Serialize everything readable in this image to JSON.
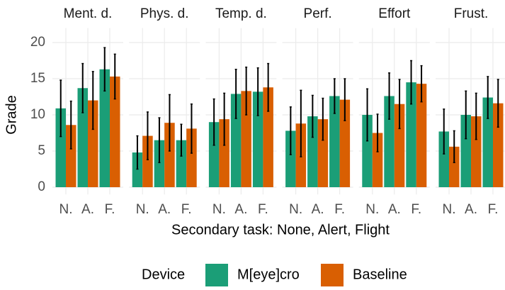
{
  "y_label": "Grade",
  "x_label": "Secondary task: None, Alert, Flight",
  "legend_title": "Device",
  "chart_data": [
    {
      "type": "bar",
      "title": "Ment. d.",
      "categories": [
        "N.",
        "A.",
        "F."
      ],
      "ylim": [
        -1,
        22
      ],
      "yticks": [
        0,
        5,
        10,
        15,
        20
      ],
      "grid": true,
      "series": [
        {
          "name": "M[eye]cro",
          "color": "#1b9e77",
          "values": [
            10.9,
            13.7,
            16.3
          ],
          "errors": [
            3.9,
            3.4,
            3.0
          ]
        },
        {
          "name": "Baseline",
          "color": "#d95f02",
          "values": [
            8.6,
            12.0,
            15.3
          ],
          "errors": [
            3.3,
            4.0,
            3.1
          ]
        }
      ]
    },
    {
      "type": "bar",
      "title": "Phys. d.",
      "categories": [
        "N.",
        "A.",
        "F."
      ],
      "ylim": [
        -1,
        22
      ],
      "yticks": [
        0,
        5,
        10,
        15,
        20
      ],
      "grid": true,
      "series": [
        {
          "name": "M[eye]cro",
          "color": "#1b9e77",
          "values": [
            4.8,
            6.5,
            6.5
          ],
          "errors": [
            2.3,
            3.1,
            2.2
          ]
        },
        {
          "name": "Baseline",
          "color": "#d95f02",
          "values": [
            7.1,
            8.9,
            8.1
          ],
          "errors": [
            3.3,
            3.9,
            3.4
          ]
        }
      ]
    },
    {
      "type": "bar",
      "title": "Temp. d.",
      "categories": [
        "N.",
        "A.",
        "F."
      ],
      "ylim": [
        -1,
        22
      ],
      "yticks": [
        0,
        5,
        10,
        15,
        20
      ],
      "grid": true,
      "series": [
        {
          "name": "M[eye]cro",
          "color": "#1b9e77",
          "values": [
            9.0,
            12.9,
            13.2
          ],
          "errors": [
            3.2,
            3.4,
            3.3
          ]
        },
        {
          "name": "Baseline",
          "color": "#d95f02",
          "values": [
            9.4,
            13.3,
            13.8
          ],
          "errors": [
            3.6,
            3.3,
            3.3
          ]
        }
      ]
    },
    {
      "type": "bar",
      "title": "Perf.",
      "categories": [
        "N.",
        "A.",
        "F."
      ],
      "ylim": [
        -1,
        22
      ],
      "yticks": [
        0,
        5,
        10,
        15,
        20
      ],
      "grid": true,
      "series": [
        {
          "name": "M[eye]cro",
          "color": "#1b9e77",
          "values": [
            7.8,
            9.8,
            12.6
          ],
          "errors": [
            3.3,
            2.9,
            2.4
          ]
        },
        {
          "name": "Baseline",
          "color": "#d95f02",
          "values": [
            8.8,
            9.4,
            12.1
          ],
          "errors": [
            4.6,
            2.9,
            2.9
          ]
        }
      ]
    },
    {
      "type": "bar",
      "title": "Effort",
      "categories": [
        "N.",
        "A.",
        "F."
      ],
      "ylim": [
        -1,
        22
      ],
      "yticks": [
        0,
        5,
        10,
        15,
        20
      ],
      "grid": true,
      "series": [
        {
          "name": "M[eye]cro",
          "color": "#1b9e77",
          "values": [
            10.0,
            12.6,
            14.5
          ],
          "errors": [
            3.6,
            3.2,
            3.0
          ]
        },
        {
          "name": "Baseline",
          "color": "#d95f02",
          "values": [
            7.5,
            11.5,
            14.3
          ],
          "errors": [
            2.6,
            3.4,
            2.5
          ]
        }
      ]
    },
    {
      "type": "bar",
      "title": "Frust.",
      "categories": [
        "N.",
        "A.",
        "F."
      ],
      "ylim": [
        -1,
        22
      ],
      "yticks": [
        0,
        5,
        10,
        15,
        20
      ],
      "grid": true,
      "series": [
        {
          "name": "M[eye]cro",
          "color": "#1b9e77",
          "values": [
            7.7,
            10.0,
            12.4
          ],
          "errors": [
            3.1,
            3.3,
            2.9
          ]
        },
        {
          "name": "Baseline",
          "color": "#d95f02",
          "values": [
            5.6,
            9.8,
            11.6
          ],
          "errors": [
            2.2,
            3.2,
            3.3
          ]
        }
      ]
    }
  ]
}
